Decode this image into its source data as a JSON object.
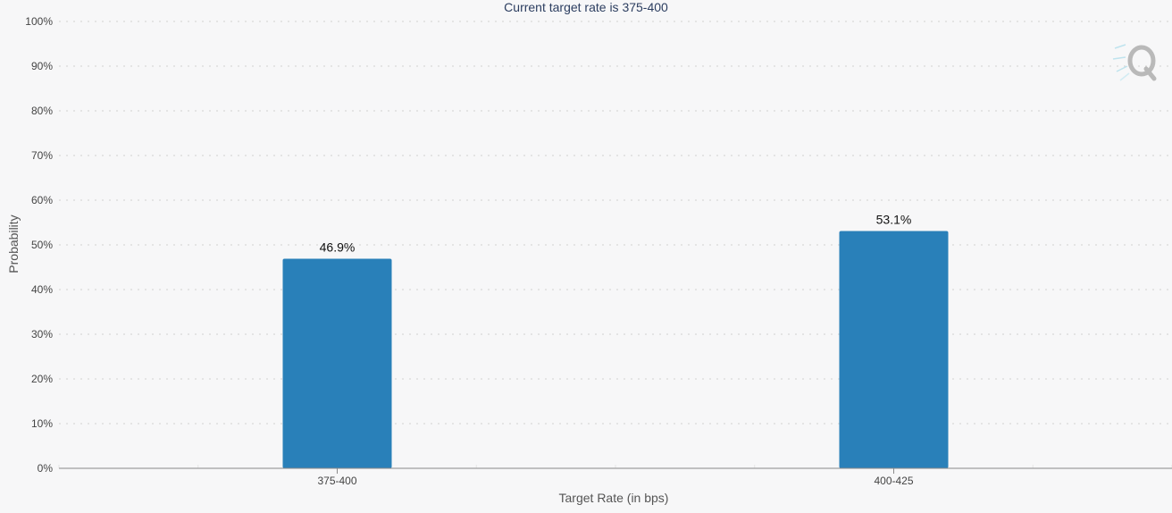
{
  "chart_data": {
    "type": "bar",
    "title": "Current target rate is 375-400",
    "xlabel": "Target Rate (in bps)",
    "ylabel": "Probability",
    "categories": [
      "375-400",
      "400-425"
    ],
    "values": [
      46.9,
      53.1
    ],
    "data_labels": [
      "46.9%",
      "53.1%"
    ],
    "y_ticks": [
      "0%",
      "10%",
      "20%",
      "30%",
      "40%",
      "50%",
      "60%",
      "70%",
      "80%",
      "90%",
      "100%"
    ],
    "ylim": [
      0,
      100
    ],
    "grid": true,
    "legend": "none",
    "bar_color": "#2980b9"
  },
  "watermark": {
    "icon": "q-logo-icon"
  }
}
